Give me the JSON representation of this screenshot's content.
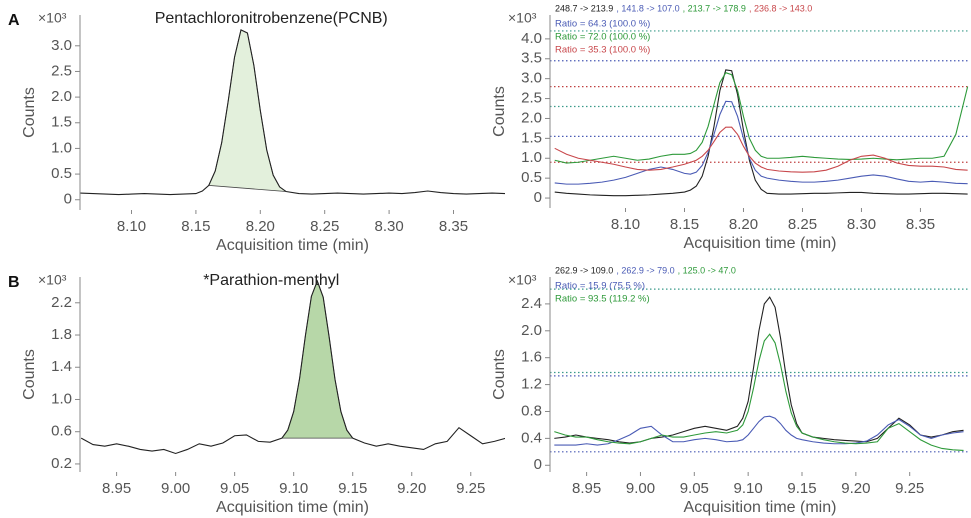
{
  "chart_data": [
    {
      "type": "line",
      "panel_label": "A",
      "title": "Pentachloronitrobenzene(PCNB)",
      "y_multiplier": "×10³",
      "x_label": "Acquisition time (min)",
      "y_label": "Counts",
      "x": [
        8.06,
        8.07,
        8.08,
        8.09,
        8.1,
        8.11,
        8.12,
        8.13,
        8.14,
        8.15,
        8.155,
        8.16,
        8.165,
        8.17,
        8.175,
        8.18,
        8.185,
        8.19,
        8.195,
        8.2,
        8.205,
        8.21,
        8.215,
        8.22,
        8.23,
        8.24,
        8.25,
        8.26,
        8.27,
        8.28,
        8.29,
        8.3,
        8.31,
        8.32,
        8.33,
        8.34,
        8.35,
        8.36,
        8.37,
        8.38,
        8.39
      ],
      "series": [
        {
          "color": "#222222",
          "values": [
            0.13,
            0.12,
            0.11,
            0.1,
            0.11,
            0.12,
            0.11,
            0.1,
            0.11,
            0.12,
            0.17,
            0.28,
            0.56,
            1.11,
            1.91,
            2.78,
            3.31,
            3.25,
            2.62,
            1.74,
            0.97,
            0.48,
            0.25,
            0.16,
            0.12,
            0.11,
            0.12,
            0.13,
            0.12,
            0.11,
            0.12,
            0.13,
            0.12,
            0.14,
            0.17,
            0.14,
            0.12,
            0.11,
            0.12,
            0.13,
            0.12
          ]
        }
      ],
      "shade": {
        "range": [
          8.16,
          8.22
        ],
        "color": "#e3f0dc"
      },
      "xlim": [
        8.06,
        8.39
      ],
      "ylim": [
        -0.2,
        3.6
      ],
      "xticks": [
        {
          "value": 8.1,
          "label": "8.10"
        },
        8.15,
        {
          "value": 8.2,
          "label": "8.20"
        },
        8.25,
        {
          "value": 8.3,
          "label": "8.30"
        },
        8.35
      ],
      "yticks": [
        0,
        0.5,
        {
          "value": 1,
          "label": "1.0"
        },
        1.5,
        {
          "value": 2,
          "label": "2.0"
        },
        2.5,
        {
          "value": 3,
          "label": "3.0"
        }
      ]
    },
    {
      "type": "line",
      "y_multiplier": "×10³",
      "x_label": "Acquisition time (min)",
      "y_label": "Counts",
      "x": [
        8.04,
        8.05,
        8.06,
        8.07,
        8.08,
        8.09,
        8.1,
        8.11,
        8.12,
        8.13,
        8.14,
        8.15,
        8.155,
        8.16,
        8.165,
        8.17,
        8.175,
        8.18,
        8.185,
        8.19,
        8.195,
        8.2,
        8.205,
        8.21,
        8.215,
        8.22,
        8.23,
        8.24,
        8.25,
        8.26,
        8.27,
        8.28,
        8.29,
        8.3,
        8.31,
        8.32,
        8.33,
        8.34,
        8.35,
        8.36,
        8.37,
        8.38,
        8.39
      ],
      "series": [
        {
          "name": "248.7 -> 213.9",
          "color": "#222222",
          "values": [
            0.15,
            0.12,
            0.1,
            0.08,
            0.07,
            0.06,
            0.06,
            0.07,
            0.08,
            0.1,
            0.12,
            0.15,
            0.2,
            0.3,
            0.55,
            1.05,
            1.8,
            2.7,
            3.22,
            3.2,
            2.6,
            1.7,
            0.95,
            0.45,
            0.22,
            0.12,
            0.1,
            0.1,
            0.11,
            0.12,
            0.12,
            0.13,
            0.14,
            0.14,
            0.12,
            0.11,
            0.1,
            0.1,
            0.11,
            0.12,
            0.12,
            0.11,
            0.1
          ]
        },
        {
          "name": ", 141.8 -> 107.0",
          "color": "#4a5bb5",
          "values": [
            0.38,
            0.35,
            0.35,
            0.37,
            0.4,
            0.45,
            0.52,
            0.62,
            0.72,
            0.78,
            0.72,
            0.62,
            0.6,
            0.65,
            0.82,
            1.15,
            1.6,
            2.1,
            2.43,
            2.42,
            2.05,
            1.5,
            1.0,
            0.7,
            0.55,
            0.5,
            0.45,
            0.42,
            0.4,
            0.4,
            0.42,
            0.45,
            0.5,
            0.55,
            0.58,
            0.55,
            0.48,
            0.42,
            0.4,
            0.42,
            0.4,
            0.37,
            0.36
          ]
        },
        {
          "name": ", 213.7 -> 178.9",
          "color": "#2e9a3a",
          "values": [
            0.95,
            0.88,
            0.9,
            0.95,
            1.0,
            1.05,
            1.0,
            0.95,
            0.98,
            1.05,
            1.1,
            1.1,
            1.12,
            1.2,
            1.4,
            1.8,
            2.35,
            2.9,
            3.15,
            3.1,
            2.7,
            2.05,
            1.5,
            1.2,
            1.05,
            1.0,
            1.0,
            1.02,
            1.05,
            1.02,
            1.0,
            0.98,
            0.97,
            0.98,
            1.0,
            0.98,
            0.96,
            0.98,
            1.0,
            1.0,
            1.05,
            1.6,
            2.8
          ]
        },
        {
          "name": ", 236.8 -> 143.0",
          "color": "#c8474b",
          "values": [
            1.25,
            1.1,
            1.0,
            0.95,
            0.9,
            0.85,
            0.78,
            0.72,
            0.7,
            0.72,
            0.78,
            0.85,
            0.9,
            0.95,
            1.05,
            1.2,
            1.42,
            1.65,
            1.78,
            1.78,
            1.6,
            1.3,
            1.05,
            0.88,
            0.78,
            0.72,
            0.68,
            0.66,
            0.65,
            0.66,
            0.7,
            0.8,
            0.95,
            1.05,
            1.08,
            1.0,
            0.88,
            0.82,
            0.8,
            0.8,
            0.78,
            0.72,
            0.7
          ]
        }
      ],
      "annotations": [
        {
          "text": "Ratio = 64.3 (100.0 %)",
          "color": "#4a5bb5"
        },
        {
          "text": "Ratio = 72.0 (100.0 %)",
          "color": "#2e9a3a"
        },
        {
          "text": "Ratio = 35.3 (100.0 %)",
          "color": "#c8474b"
        }
      ],
      "reference_lines": [
        {
          "value": 3.45,
          "color": "#4a5bb5"
        },
        {
          "value": 1.55,
          "color": "#4a5bb5"
        },
        {
          "value": 4.2,
          "color": "#3a9a8a"
        },
        {
          "value": 2.3,
          "color": "#3a9a8a"
        },
        {
          "value": 2.8,
          "color": "#c04040"
        },
        {
          "value": 0.9,
          "color": "#c04040"
        }
      ],
      "xlim": [
        8.036,
        8.392
      ],
      "ylim": [
        -0.25,
        4.6
      ],
      "xticks": [
        {
          "value": 8.1,
          "label": "8.10"
        },
        8.15,
        {
          "value": 8.2,
          "label": "8.20"
        },
        8.25,
        {
          "value": 8.3,
          "label": "8.30"
        },
        8.35
      ],
      "yticks": [
        0,
        0.5,
        {
          "value": 1,
          "label": "1.0"
        },
        1.5,
        {
          "value": 2,
          "label": "2.0"
        },
        2.5,
        {
          "value": 3,
          "label": "3.0"
        },
        3.5,
        {
          "value": 4,
          "label": "4.0"
        }
      ]
    },
    {
      "type": "line",
      "panel_label": "B",
      "title": "*Parathion-menthyl",
      "y_multiplier": "×10³",
      "x_label": "Acquisition time (min)",
      "y_label": "Counts",
      "x": [
        8.92,
        8.93,
        8.94,
        8.95,
        8.96,
        8.97,
        8.98,
        8.99,
        9.0,
        9.01,
        9.02,
        9.03,
        9.04,
        9.05,
        9.06,
        9.07,
        9.08,
        9.09,
        9.095,
        9.1,
        9.105,
        9.11,
        9.115,
        9.12,
        9.125,
        9.13,
        9.135,
        9.14,
        9.145,
        9.15,
        9.16,
        9.17,
        9.18,
        9.19,
        9.2,
        9.21,
        9.22,
        9.23,
        9.24,
        9.25,
        9.26,
        9.27,
        9.28
      ],
      "series": [
        {
          "color": "#222222",
          "values": [
            0.52,
            0.44,
            0.42,
            0.45,
            0.42,
            0.38,
            0.36,
            0.38,
            0.33,
            0.38,
            0.45,
            0.42,
            0.46,
            0.55,
            0.56,
            0.48,
            0.47,
            0.52,
            0.62,
            0.85,
            1.26,
            1.8,
            2.28,
            2.47,
            2.27,
            1.78,
            1.25,
            0.85,
            0.62,
            0.52,
            0.46,
            0.42,
            0.45,
            0.42,
            0.4,
            0.38,
            0.45,
            0.48,
            0.65,
            0.55,
            0.45,
            0.48,
            0.52
          ]
        }
      ],
      "shade": {
        "range": [
          9.09,
          9.15
        ],
        "color": "#b7d7a8"
      },
      "xlim": [
        8.919,
        9.279
      ],
      "ylim": [
        0.1,
        2.52
      ],
      "xticks": [
        8.95,
        {
          "value": 9,
          "label": "9.00"
        },
        9.05,
        {
          "value": 9.1,
          "label": "9.10"
        },
        9.15,
        {
          "value": 9.2,
          "label": "9.20"
        },
        9.25
      ],
      "yticks": [
        0.2,
        0.6,
        {
          "value": 1,
          "label": "1.0"
        },
        1.4,
        1.8,
        2.2
      ]
    },
    {
      "type": "line",
      "y_multiplier": "×10³",
      "x_label": "Acquisition time (min)",
      "y_label": "Counts",
      "x": [
        8.92,
        8.93,
        8.94,
        8.95,
        8.96,
        8.97,
        8.98,
        8.99,
        9.0,
        9.01,
        9.02,
        9.03,
        9.04,
        9.05,
        9.06,
        9.07,
        9.08,
        9.09,
        9.095,
        9.1,
        9.105,
        9.11,
        9.115,
        9.12,
        9.125,
        9.13,
        9.135,
        9.14,
        9.145,
        9.15,
        9.16,
        9.17,
        9.18,
        9.19,
        9.2,
        9.21,
        9.22,
        9.23,
        9.24,
        9.25,
        9.26,
        9.27,
        9.28,
        9.29,
        9.3
      ],
      "series": [
        {
          "name": "262.9 -> 109.0",
          "color": "#222222",
          "values": [
            0.4,
            0.42,
            0.45,
            0.42,
            0.4,
            0.38,
            0.35,
            0.33,
            0.35,
            0.4,
            0.42,
            0.45,
            0.5,
            0.55,
            0.58,
            0.55,
            0.52,
            0.58,
            0.7,
            0.95,
            1.45,
            2.0,
            2.4,
            2.5,
            2.35,
            1.9,
            1.35,
            0.9,
            0.62,
            0.48,
            0.42,
            0.4,
            0.38,
            0.37,
            0.36,
            0.35,
            0.4,
            0.55,
            0.7,
            0.6,
            0.45,
            0.42,
            0.45,
            0.5,
            0.52
          ]
        },
        {
          "name": ", 262.9 -> 79.0",
          "color": "#4a5bb5",
          "values": [
            0.3,
            0.3,
            0.3,
            0.32,
            0.3,
            0.32,
            0.38,
            0.45,
            0.55,
            0.58,
            0.45,
            0.35,
            0.35,
            0.38,
            0.4,
            0.38,
            0.35,
            0.36,
            0.38,
            0.45,
            0.55,
            0.65,
            0.72,
            0.73,
            0.7,
            0.62,
            0.52,
            0.45,
            0.4,
            0.38,
            0.35,
            0.33,
            0.32,
            0.32,
            0.33,
            0.36,
            0.45,
            0.6,
            0.68,
            0.58,
            0.45,
            0.4,
            0.45,
            0.48,
            0.5
          ]
        },
        {
          "name": ", 125.0 -> 47.0",
          "color": "#2e9a3a",
          "values": [
            0.5,
            0.45,
            0.42,
            0.42,
            0.38,
            0.35,
            0.33,
            0.32,
            0.35,
            0.4,
            0.45,
            0.42,
            0.42,
            0.45,
            0.48,
            0.5,
            0.48,
            0.52,
            0.6,
            0.8,
            1.15,
            1.55,
            1.85,
            1.95,
            1.82,
            1.5,
            1.1,
            0.78,
            0.58,
            0.48,
            0.42,
            0.38,
            0.35,
            0.33,
            0.32,
            0.33,
            0.35,
            0.55,
            0.62,
            0.5,
            0.38,
            0.3,
            0.25,
            0.23,
            0.22
          ]
        }
      ],
      "annotations": [
        {
          "text": "Ratio = 15.9 (75.5 %)",
          "color": "#4a5bb5"
        },
        {
          "text": "Ratio = 93.5 (119.2 %)",
          "color": "#2e9a3a"
        }
      ],
      "reference_lines": [
        {
          "value": 1.33,
          "color": "#4a5bb5"
        },
        {
          "value": 0.2,
          "color": "#4a5bb5"
        },
        {
          "value": 2.62,
          "color": "#3a9a8a"
        },
        {
          "value": 1.38,
          "color": "#3a9a8a"
        }
      ],
      "xlim": [
        8.916,
        9.306
      ],
      "ylim": [
        -0.1,
        2.8
      ],
      "xticks": [
        8.95,
        {
          "value": 9,
          "label": "9.00"
        },
        9.05,
        {
          "value": 9.1,
          "label": "9.10"
        },
        9.15,
        {
          "value": 9.2,
          "label": "9.20"
        },
        9.25
      ],
      "yticks": [
        0,
        0.4,
        0.8,
        1.2,
        1.6,
        {
          "value": 2,
          "label": "2.0"
        },
        2.4
      ]
    }
  ]
}
